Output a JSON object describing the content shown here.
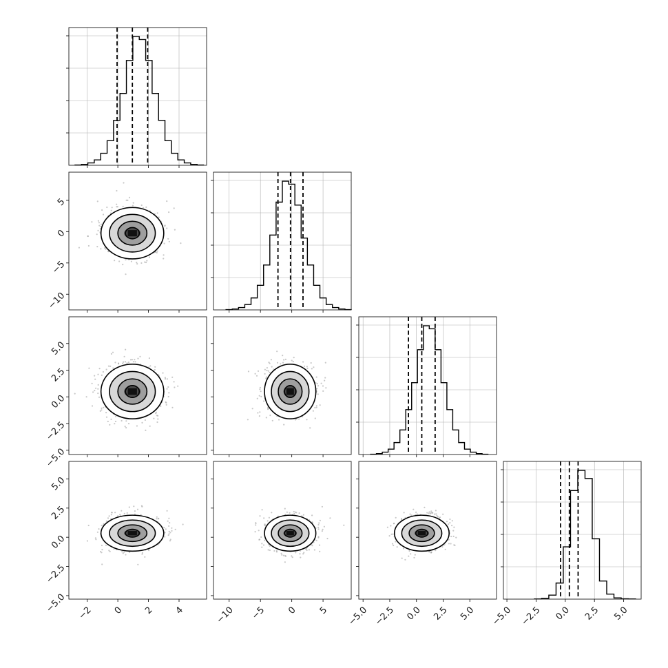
{
  "chart_data": {
    "type": "corner",
    "grid": true,
    "parameters": [
      {
        "ticks": [
          -2,
          0,
          2,
          4
        ],
        "tick_labels": [
          "−2",
          "0",
          "2",
          "4"
        ],
        "range": [
          -3.2,
          5.8
        ],
        "mean": 0.95,
        "sd": 1.0,
        "quantiles": [
          -0.05,
          0.95,
          1.95
        ],
        "hist": {
          "start": -2.8,
          "width": 0.42,
          "counts": [
            1,
            3,
            8,
            18,
            40,
            82,
            150,
            240,
            350,
            430,
            420,
            350,
            240,
            150,
            82,
            40,
            18,
            8,
            3,
            1
          ]
        }
      },
      {
        "ticks": [
          -10,
          -5,
          0,
          5
        ],
        "tick_labels": [
          "−10",
          "−5",
          "0",
          "5"
        ],
        "range": [
          -12.5,
          9.5
        ],
        "mean": -0.25,
        "sd": 2.0,
        "quantiles": [
          -2.2,
          -0.2,
          1.8
        ],
        "hist": {
          "start": -10.5,
          "width": 1.0,
          "counts": [
            1,
            3,
            8,
            18,
            40,
            82,
            150,
            250,
            360,
            430,
            420,
            350,
            240,
            150,
            82,
            40,
            18,
            8,
            3,
            1
          ]
        }
      },
      {
        "ticks": [
          -5.0,
          -2.5,
          0.0,
          2.5,
          5.0
        ],
        "tick_labels": [
          "−5.0",
          "−2.5",
          "0.0",
          "2.5",
          "5.0"
        ],
        "range": [
          -5.4,
          7.5
        ],
        "mean": 0.5,
        "sd": 1.25,
        "quantiles": [
          -0.75,
          0.5,
          1.75
        ],
        "hist": {
          "start": -4.3,
          "width": 0.55,
          "counts": [
            1,
            3,
            8,
            18,
            40,
            82,
            150,
            240,
            350,
            430,
            420,
            350,
            240,
            150,
            82,
            40,
            18,
            8,
            3,
            1
          ]
        }
      },
      {
        "ticks": [
          -5.0,
          -2.5,
          0.0,
          2.5,
          5.0
        ],
        "tick_labels": [
          "−5.0",
          "−2.5",
          "0.0",
          "2.5",
          "5.0"
        ],
        "range": [
          -5.3,
          6.5
        ],
        "mean": 0.35,
        "sd": 0.75,
        "quantiles": [
          -0.4,
          0.35,
          1.1
        ],
        "hist": {
          "start": -2.65,
          "width": 0.62,
          "counts": [
            1,
            4,
            20,
            80,
            260,
            540,
            640,
            600,
            300,
            90,
            25,
            6,
            2,
            1
          ]
        }
      }
    ],
    "scatter_points": 700,
    "contour_levels": [
      0.45,
      0.95,
      1.5,
      2.05
    ]
  }
}
